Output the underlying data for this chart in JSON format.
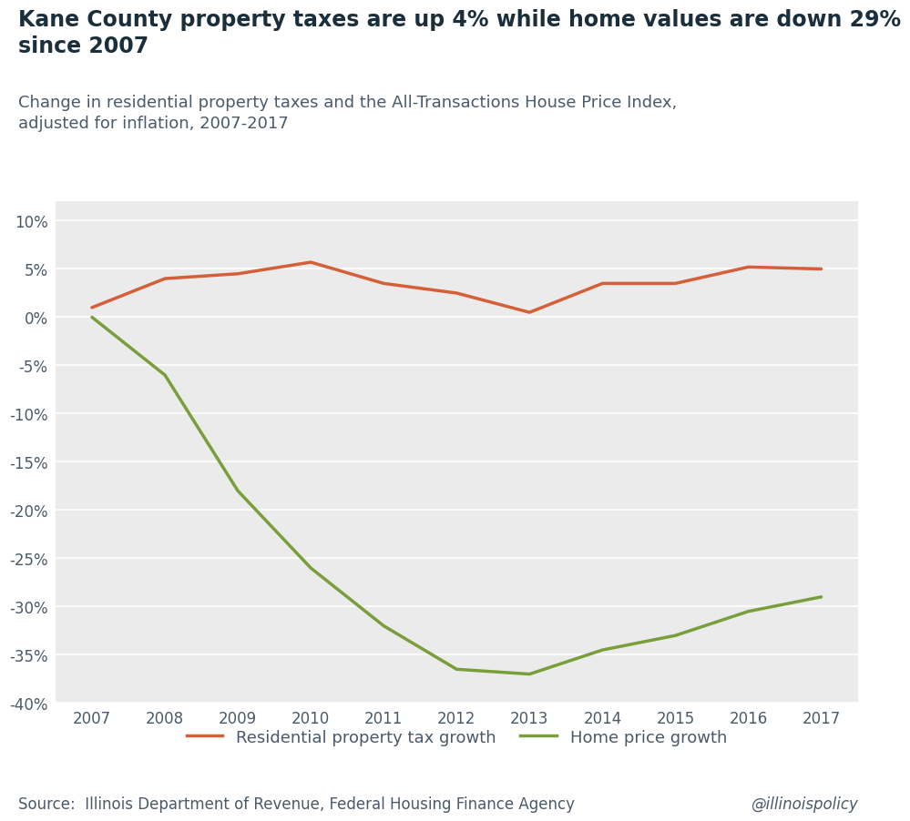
{
  "title_bold": "Kane County property taxes are up 4% while home values are down 29%\nsince 2007",
  "subtitle": "Change in residential property taxes and the All-Transactions House Price Index,\nadjusted for inflation, 2007-2017",
  "years": [
    2007,
    2008,
    2009,
    2010,
    2011,
    2012,
    2013,
    2014,
    2015,
    2016,
    2017
  ],
  "property_tax": [
    1.0,
    4.0,
    4.5,
    5.7,
    3.5,
    2.5,
    0.5,
    3.5,
    3.5,
    5.2,
    5.0
  ],
  "home_price": [
    0.0,
    -6.0,
    -18.0,
    -26.0,
    -32.0,
    -36.5,
    -37.0,
    -34.5,
    -33.0,
    -30.5,
    -29.0
  ],
  "tax_color": "#d45f38",
  "home_color": "#7a9e3b",
  "ylim": [
    -40,
    12
  ],
  "yticks": [
    10,
    5,
    0,
    -5,
    -10,
    -15,
    -20,
    -25,
    -30,
    -35,
    -40
  ],
  "source_text": "Source:  Illinois Department of Revenue, Federal Housing Finance Agency",
  "watermark": "@illinoispolicy",
  "legend_tax": "Residential property tax growth",
  "legend_home": "Home price growth",
  "bg_color": "#ffffff",
  "plot_bg_color": "#ebebeb",
  "title_color": "#1a2e3b",
  "axis_label_color": "#4a5a6a",
  "grid_color": "#ffffff",
  "line_width": 2.5,
  "title_fontsize": 17,
  "subtitle_fontsize": 13,
  "tick_fontsize": 12,
  "legend_fontsize": 13,
  "source_fontsize": 12
}
